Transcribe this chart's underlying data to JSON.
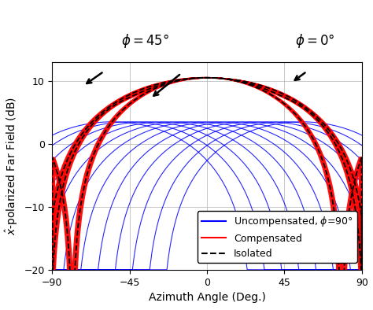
{
  "xlabel": "Azimuth Angle (Deg.)",
  "ylabel": "$\\hat{x}$-polarized Far Field (dB)",
  "xlim": [
    -90,
    90
  ],
  "ylim": [
    -20,
    13
  ],
  "yticks": [
    -20,
    -10,
    0,
    10
  ],
  "xticks": [
    -90,
    -45,
    0,
    45,
    90
  ],
  "blue_color": "#0000FF",
  "red_color": "#FF0000",
  "black_color": "#000000",
  "background_color": "#ffffff",
  "grid_color": "#b0b0b0",
  "peak_db": 10.5,
  "blue_peak_db": 3.5,
  "n_blue": 12,
  "phi_label_fontsize": 12,
  "legend_fontsize": 9
}
